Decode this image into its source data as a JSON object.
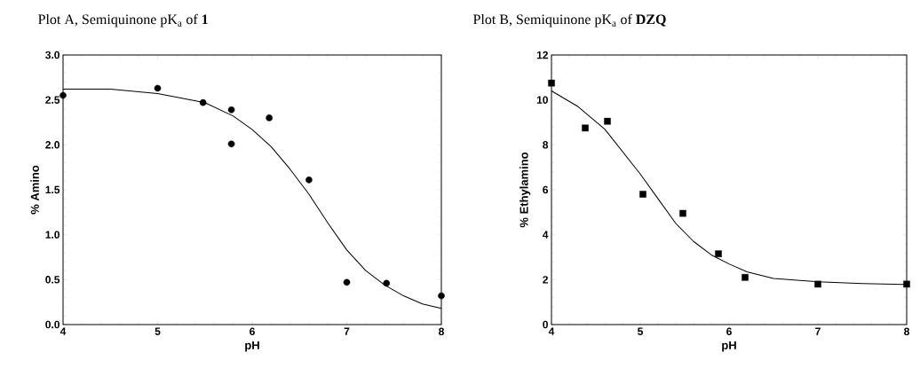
{
  "chart_data": [
    {
      "type": "scatter",
      "title": "Plot A, Semiquinone pK$_{a}$ of **1**",
      "xlabel": "pH",
      "ylabel": "% Amino",
      "xlim": [
        4,
        8
      ],
      "ylim": [
        0,
        3
      ],
      "xticks": [
        4,
        5,
        6,
        7,
        8
      ],
      "yticks": [
        {
          "value": 0,
          "label": "0.0"
        },
        {
          "value": 0.5,
          "label": "0.5"
        },
        {
          "value": 1,
          "label": "1.0"
        },
        {
          "value": 1.5,
          "label": "1.5"
        },
        {
          "value": 2,
          "label": "2.0"
        },
        {
          "value": 2.5,
          "label": "2.5"
        },
        {
          "value": 3,
          "label": "3.0"
        }
      ],
      "grid": false,
      "series": [
        {
          "marker": "circle",
          "color": "#000000",
          "x": [
            4,
            5,
            5.48,
            5.78,
            5.78,
            6.18,
            6.6,
            7.0,
            7.42,
            8.0
          ],
          "values": [
            2.55,
            2.63,
            2.47,
            2.39,
            2.01,
            2.3,
            1.61,
            0.47,
            0.46,
            0.32
          ]
        },
        {
          "type": "line",
          "color": "#000000",
          "x": [
            4,
            4.5,
            5,
            5.5,
            5.8,
            6.0,
            6.2,
            6.4,
            6.6,
            6.8,
            7.0,
            7.2,
            7.4,
            7.6,
            7.8,
            8
          ],
          "values": [
            2.62,
            2.62,
            2.57,
            2.47,
            2.32,
            2.17,
            1.98,
            1.73,
            1.45,
            1.13,
            0.83,
            0.6,
            0.44,
            0.32,
            0.23,
            0.18
          ]
        }
      ]
    },
    {
      "type": "scatter",
      "title": "Plot B, Semiquinone pK$_{a}$ of **DZQ**",
      "xlabel": "pH",
      "ylabel": "% Ethylamino",
      "xlim": [
        4,
        8
      ],
      "ylim": [
        0,
        12
      ],
      "xticks": [
        4,
        5,
        6,
        7,
        8
      ],
      "yticks": [
        0,
        2,
        4,
        6,
        8,
        10,
        12
      ],
      "grid": false,
      "series": [
        {
          "marker": "square",
          "color": "#000000",
          "x": [
            4.0,
            4.38,
            4.63,
            5.03,
            5.48,
            5.88,
            6.18,
            7.0,
            8.0
          ],
          "values": [
            10.75,
            8.75,
            9.05,
            5.8,
            4.95,
            3.15,
            2.1,
            1.8,
            1.8
          ]
        },
        {
          "type": "line",
          "color": "#000000",
          "x": [
            4,
            4.3,
            4.6,
            4.8,
            5.0,
            5.2,
            5.4,
            5.6,
            5.8,
            6.0,
            6.2,
            6.5,
            7,
            7.5,
            8
          ],
          "values": [
            10.4,
            9.7,
            8.7,
            7.7,
            6.7,
            5.6,
            4.5,
            3.7,
            3.1,
            2.7,
            2.35,
            2.05,
            1.9,
            1.83,
            1.78
          ]
        }
      ]
    }
  ]
}
